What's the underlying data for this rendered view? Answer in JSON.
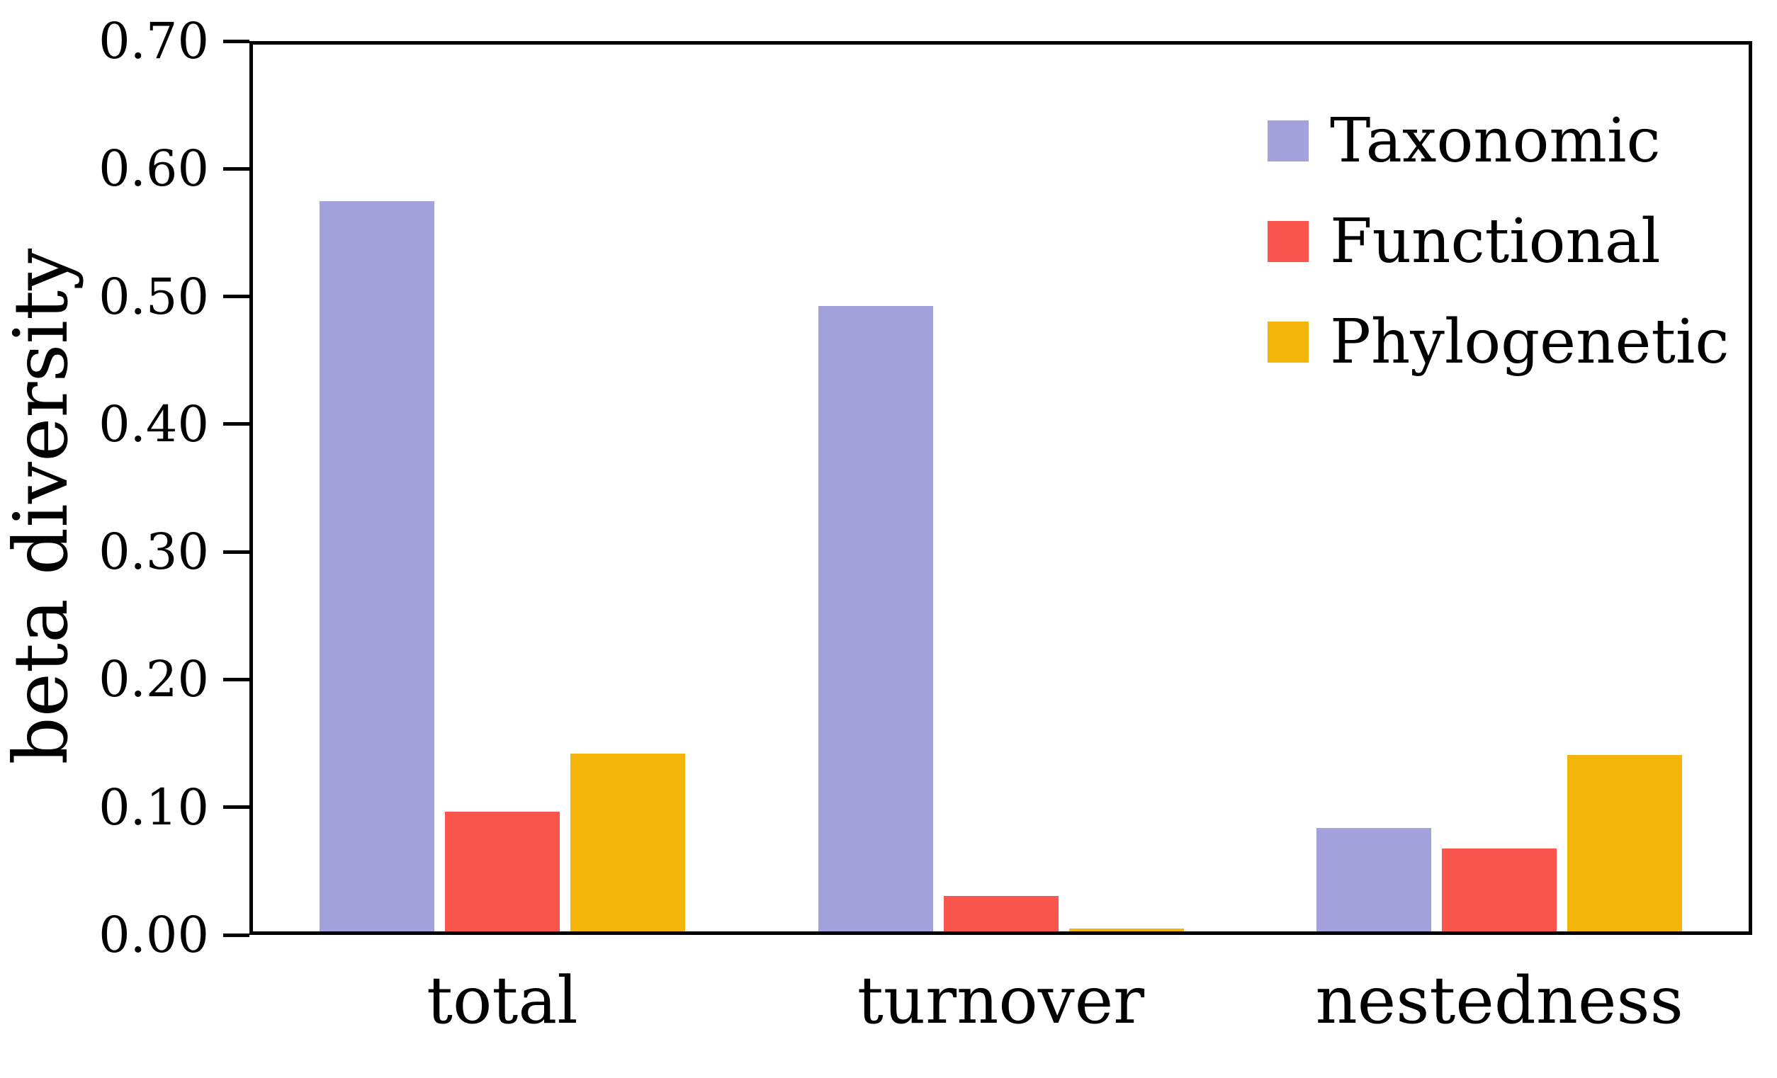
{
  "chart_data": {
    "type": "bar",
    "title": "",
    "xlabel": "",
    "ylabel": "beta diversity",
    "categories": [
      "total",
      "turnover",
      "nestedness"
    ],
    "series": [
      {
        "name": "Taxonomic",
        "color": "#a3a2dd",
        "values": [
          0.572,
          0.49,
          0.081
        ]
      },
      {
        "name": "Functional",
        "color": "#fb564d",
        "values": [
          0.094,
          0.028,
          0.065
        ]
      },
      {
        "name": "Phylogenetic",
        "color": "#f4b50b",
        "values": [
          0.139,
          0.002,
          0.138
        ]
      }
    ],
    "ylim": [
      0.0,
      0.7
    ],
    "ytick_step": 0.1,
    "y_ticks": [
      "0.70",
      "0.60",
      "0.50",
      "0.40",
      "0.30",
      "0.20",
      "0.10",
      "0.00"
    ],
    "grid": false,
    "frame": "full-box",
    "legend_position": "top-right-inside",
    "axis_color": "#000000",
    "background_color": "#ffffff"
  }
}
